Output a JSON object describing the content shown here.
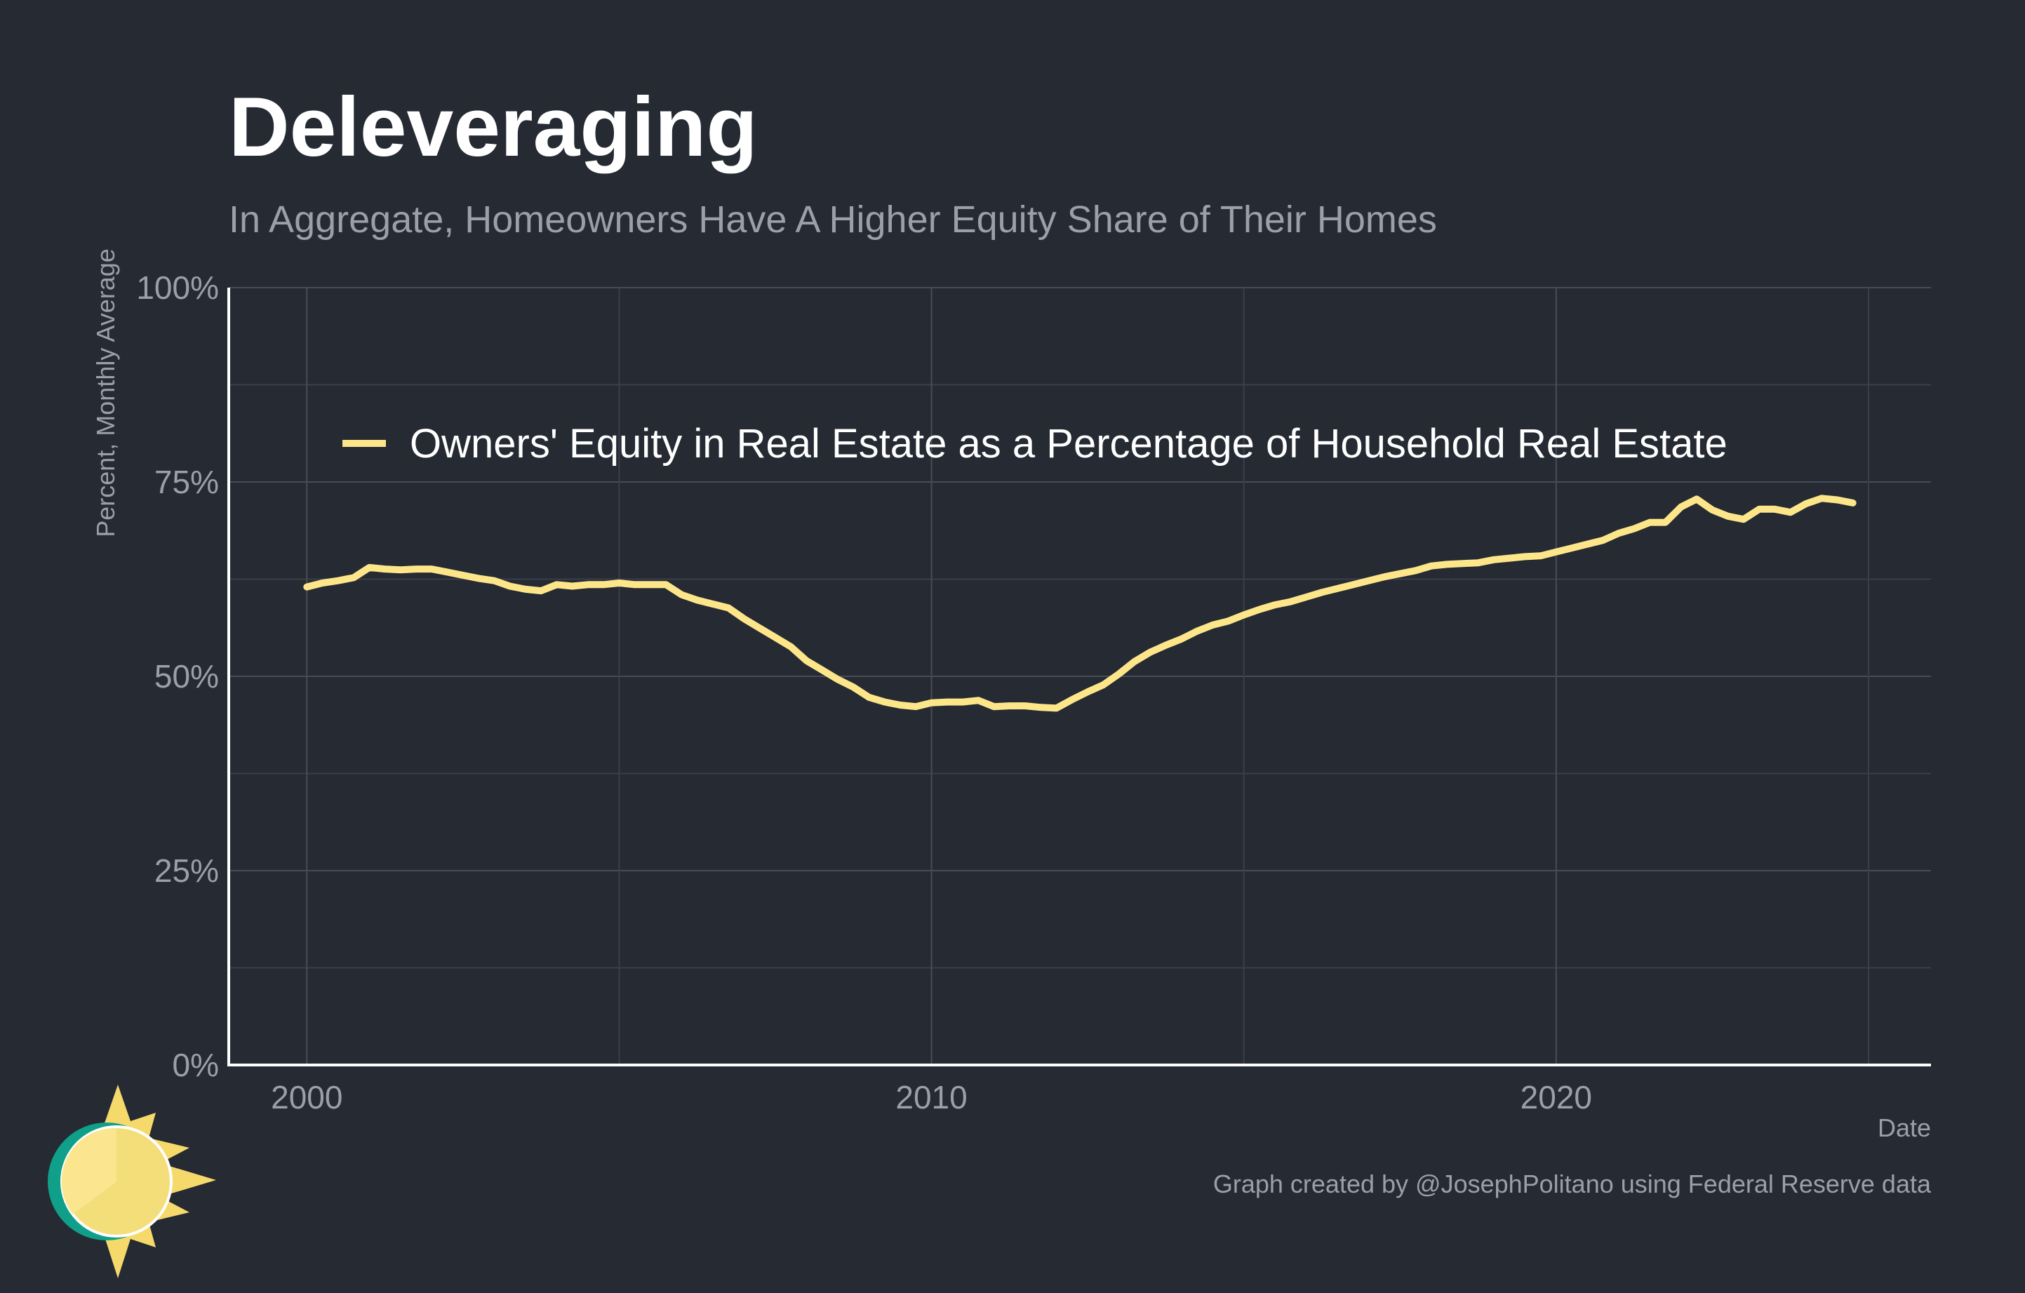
{
  "header": {
    "title": "Deleveraging",
    "subtitle": "In Aggregate, Homeowners Have A Higher Equity Share of Their Homes"
  },
  "caption": "Graph created by @JosephPolitano using Federal Reserve data",
  "logo": {
    "icon": "sun-logo-icon"
  },
  "colors": {
    "background": "#252a33",
    "line": "#fde68a",
    "grid_major": "#474c56",
    "grid_minor": "#3a3f48",
    "axis": "#ffffff",
    "muted_text": "#9a9fa8"
  },
  "chart_data": {
    "type": "line",
    "title": "Deleveraging",
    "subtitle": "In Aggregate, Homeowners Have A Higher Equity Share of Their Homes",
    "xlabel": "Date",
    "ylabel": "Percent, Monthly Average",
    "xlim": [
      1998.75,
      2026.0
    ],
    "ylim": [
      0,
      100
    ],
    "x_ticks": [
      2000,
      2010,
      2020
    ],
    "x_tick_labels": [
      "2000",
      "2010",
      "2020"
    ],
    "y_ticks": [
      0,
      25,
      50,
      75,
      100
    ],
    "y_tick_labels": [
      "0%",
      "25%",
      "50%",
      "75%",
      "100%"
    ],
    "grid": true,
    "legend_position": "top-left",
    "series": [
      {
        "name": "Owners' Equity in Real Estate as a Percentage of Household Real Estate",
        "color": "#fde68a",
        "x": [
          2000.0,
          2000.25,
          2000.5,
          2000.75,
          2001.0,
          2001.25,
          2001.5,
          2001.75,
          2002.0,
          2002.25,
          2002.5,
          2002.75,
          2003.0,
          2003.25,
          2003.5,
          2003.75,
          2004.0,
          2004.25,
          2004.5,
          2004.75,
          2005.0,
          2005.25,
          2005.5,
          2005.75,
          2006.0,
          2006.25,
          2006.5,
          2006.75,
          2007.0,
          2007.25,
          2007.5,
          2007.75,
          2008.0,
          2008.25,
          2008.5,
          2008.75,
          2009.0,
          2009.25,
          2009.5,
          2009.75,
          2010.0,
          2010.25,
          2010.5,
          2010.75,
          2011.0,
          2011.25,
          2011.5,
          2011.75,
          2012.0,
          2012.25,
          2012.5,
          2012.75,
          2013.0,
          2013.25,
          2013.5,
          2013.75,
          2014.0,
          2014.25,
          2014.5,
          2014.75,
          2015.0,
          2015.25,
          2015.5,
          2015.75,
          2016.0,
          2016.25,
          2016.5,
          2016.75,
          2017.0,
          2017.25,
          2017.5,
          2017.75,
          2018.0,
          2018.25,
          2018.5,
          2018.75,
          2019.0,
          2019.25,
          2019.5,
          2019.75,
          2020.0,
          2020.25,
          2020.5,
          2020.75,
          2021.0,
          2021.25,
          2021.5,
          2021.75,
          2022.0,
          2022.25,
          2022.5,
          2022.75,
          2023.0,
          2023.25,
          2023.5,
          2023.75,
          2024.0,
          2024.25,
          2024.5,
          2024.75
        ],
        "y": [
          61.5,
          62.0,
          62.3,
          62.7,
          64.0,
          63.8,
          63.7,
          63.8,
          63.8,
          63.4,
          63.0,
          62.6,
          62.3,
          61.6,
          61.2,
          61.0,
          61.8,
          61.6,
          61.8,
          61.8,
          62.0,
          61.8,
          61.8,
          61.8,
          60.5,
          59.8,
          59.3,
          58.8,
          57.4,
          56.2,
          55.0,
          53.8,
          52.0,
          50.8,
          49.6,
          48.6,
          47.3,
          46.7,
          46.3,
          46.1,
          46.6,
          46.7,
          46.7,
          46.9,
          46.1,
          46.2,
          46.2,
          46.0,
          45.9,
          47.0,
          48.0,
          48.9,
          50.3,
          51.9,
          53.1,
          54.0,
          54.8,
          55.8,
          56.6,
          57.1,
          57.9,
          58.6,
          59.2,
          59.6,
          60.2,
          60.8,
          61.3,
          61.8,
          62.3,
          62.8,
          63.2,
          63.6,
          64.2,
          64.4,
          64.5,
          64.6,
          65.0,
          65.2,
          65.4,
          65.5,
          66.0,
          66.5,
          67.0,
          67.5,
          68.4,
          69.0,
          69.8,
          69.8,
          71.8,
          72.8,
          71.4,
          70.6,
          70.2,
          71.5,
          71.5,
          71.1,
          72.2,
          72.9,
          72.7,
          72.3
        ]
      }
    ]
  }
}
